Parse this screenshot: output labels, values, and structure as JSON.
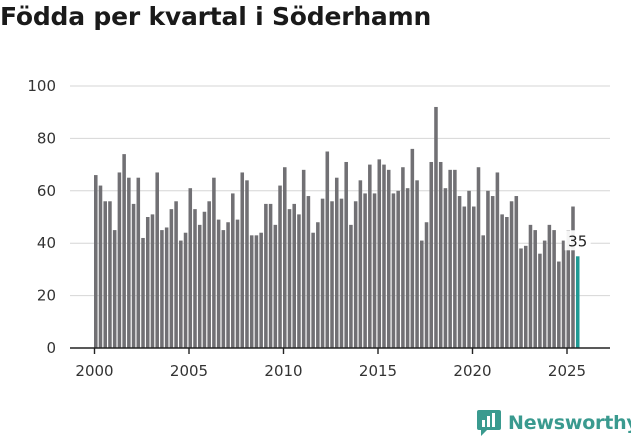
{
  "brand": {
    "name": "Newsworthy",
    "color": "#3a9a8f"
  },
  "colors": {
    "bar": "#717074",
    "highlight": "#1f9a94",
    "grid": "#d6d6d6"
  },
  "chart_data": {
    "type": "bar",
    "title": "Födda per kvartal i Söderhamn",
    "xlabel": "",
    "ylabel": "",
    "ylim": [
      0,
      100
    ],
    "yticks": [
      0,
      20,
      40,
      60,
      80,
      100
    ],
    "xticks": [
      2000,
      2005,
      2010,
      2015,
      2020,
      2025
    ],
    "grid": true,
    "start_year": 2000,
    "start_quarter": 1,
    "values": [
      66,
      62,
      56,
      56,
      45,
      67,
      74,
      65,
      55,
      65,
      42,
      50,
      51,
      67,
      45,
      46,
      53,
      56,
      41,
      44,
      61,
      53,
      47,
      52,
      56,
      65,
      49,
      45,
      48,
      59,
      49,
      67,
      64,
      43,
      43,
      44,
      55,
      55,
      47,
      62,
      69,
      53,
      55,
      51,
      68,
      58,
      44,
      48,
      57,
      75,
      56,
      65,
      57,
      71,
      47,
      56,
      64,
      59,
      70,
      59,
      72,
      70,
      68,
      59,
      60,
      69,
      61,
      76,
      64,
      41,
      48,
      71,
      92,
      71,
      61,
      68,
      68,
      58,
      54,
      60,
      54,
      69,
      43,
      60,
      58,
      67,
      51,
      50,
      56,
      58,
      38,
      39,
      47,
      45,
      36,
      41,
      47,
      45,
      33,
      41,
      45,
      54,
      35
    ],
    "highlight_index": 102,
    "data_label": {
      "index": 102,
      "text": "35"
    }
  }
}
